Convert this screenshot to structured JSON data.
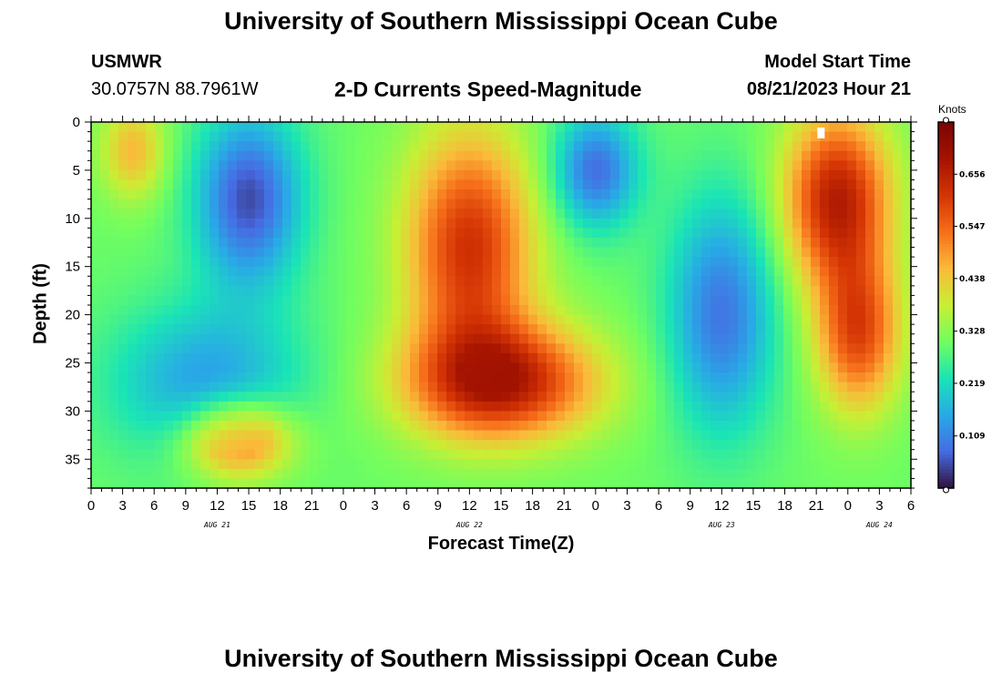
{
  "header": {
    "title": "University of Southern Mississippi Ocean Cube",
    "station": "USMWR",
    "coords": "30.0757N  88.7961W",
    "subtitle": "2-D Currents Speed-Magnitude",
    "model_label": "Model Start Time",
    "model_time": "08/21/2023 Hour 21"
  },
  "footer": {
    "title": "University of Southern Mississippi Ocean Cube"
  },
  "chart_data": {
    "type": "heatmap",
    "title": "2-D Currents Speed-Magnitude",
    "xlabel": "Forecast Time(Z)",
    "ylabel": "Depth (ft)",
    "x_unit": "hours from Aug 21 00Z",
    "xlim": [
      0,
      78
    ],
    "ylim": [
      38,
      0
    ],
    "x_ticks": [
      0,
      3,
      6,
      9,
      12,
      15,
      18,
      21,
      24,
      27,
      30,
      33,
      36,
      39,
      42,
      45,
      48,
      51,
      54,
      57,
      60,
      63,
      66,
      69,
      72,
      75,
      78
    ],
    "x_tick_labels": [
      "0",
      "3",
      "6",
      "9",
      "12",
      "15",
      "18",
      "21",
      "0",
      "3",
      "6",
      "9",
      "12",
      "15",
      "18",
      "21",
      "0",
      "3",
      "6",
      "9",
      "12",
      "15",
      "18",
      "21",
      "0",
      "3",
      "6"
    ],
    "date_labels": [
      {
        "text": "AUG 21",
        "x": 12
      },
      {
        "text": "AUG 22",
        "x": 36
      },
      {
        "text": "AUG 23",
        "x": 60
      },
      {
        "text": "AUG 24",
        "x": 75
      }
    ],
    "y_ticks": [
      0,
      5,
      10,
      15,
      20,
      25,
      30,
      35
    ],
    "y_tick_labels": [
      "0",
      "5",
      "10",
      "15",
      "20",
      "25",
      "30",
      "35"
    ],
    "colorbar": {
      "units": "Knots",
      "min": 0.0,
      "max": 0.765,
      "ticks": [
        0.109,
        0.219,
        0.328,
        0.438,
        0.547,
        0.656
      ],
      "tick_labels": [
        "0.109",
        "0.219",
        "0.328",
        "0.438",
        "0.547",
        "0.656"
      ],
      "colormap": "turbo"
    },
    "speed_field_knots": {
      "background": 0.3,
      "features": [
        {
          "center_hour": 4,
          "center_depth_ft": 3,
          "spread_hours": 3,
          "spread_ft": 5,
          "speed": 0.46
        },
        {
          "center_hour": 15,
          "center_depth_ft": 8,
          "spread_hours": 5,
          "spread_ft": 9,
          "speed": 0.05
        },
        {
          "center_hour": 11,
          "center_depth_ft": 27,
          "spread_hours": 9,
          "spread_ft": 8,
          "speed": 0.14
        },
        {
          "center_hour": 14,
          "center_depth_ft": 33,
          "spread_hours": 5,
          "spread_ft": 4,
          "speed": 0.58
        },
        {
          "center_hour": 36,
          "center_depth_ft": 13,
          "spread_hours": 6,
          "spread_ft": 12,
          "speed": 0.62
        },
        {
          "center_hour": 39,
          "center_depth_ft": 27,
          "spread_hours": 9,
          "spread_ft": 6,
          "speed": 0.66
        },
        {
          "center_hour": 48,
          "center_depth_ft": 5,
          "spread_hours": 4,
          "spread_ft": 6,
          "speed": 0.08
        },
        {
          "center_hour": 60,
          "center_depth_ft": 20,
          "spread_hours": 5,
          "spread_ft": 12,
          "speed": 0.09
        },
        {
          "center_hour": 71,
          "center_depth_ft": 8,
          "spread_hours": 5,
          "spread_ft": 9,
          "speed": 0.66
        },
        {
          "center_hour": 73,
          "center_depth_ft": 22,
          "spread_hours": 4,
          "spread_ft": 8,
          "speed": 0.58
        }
      ]
    }
  }
}
